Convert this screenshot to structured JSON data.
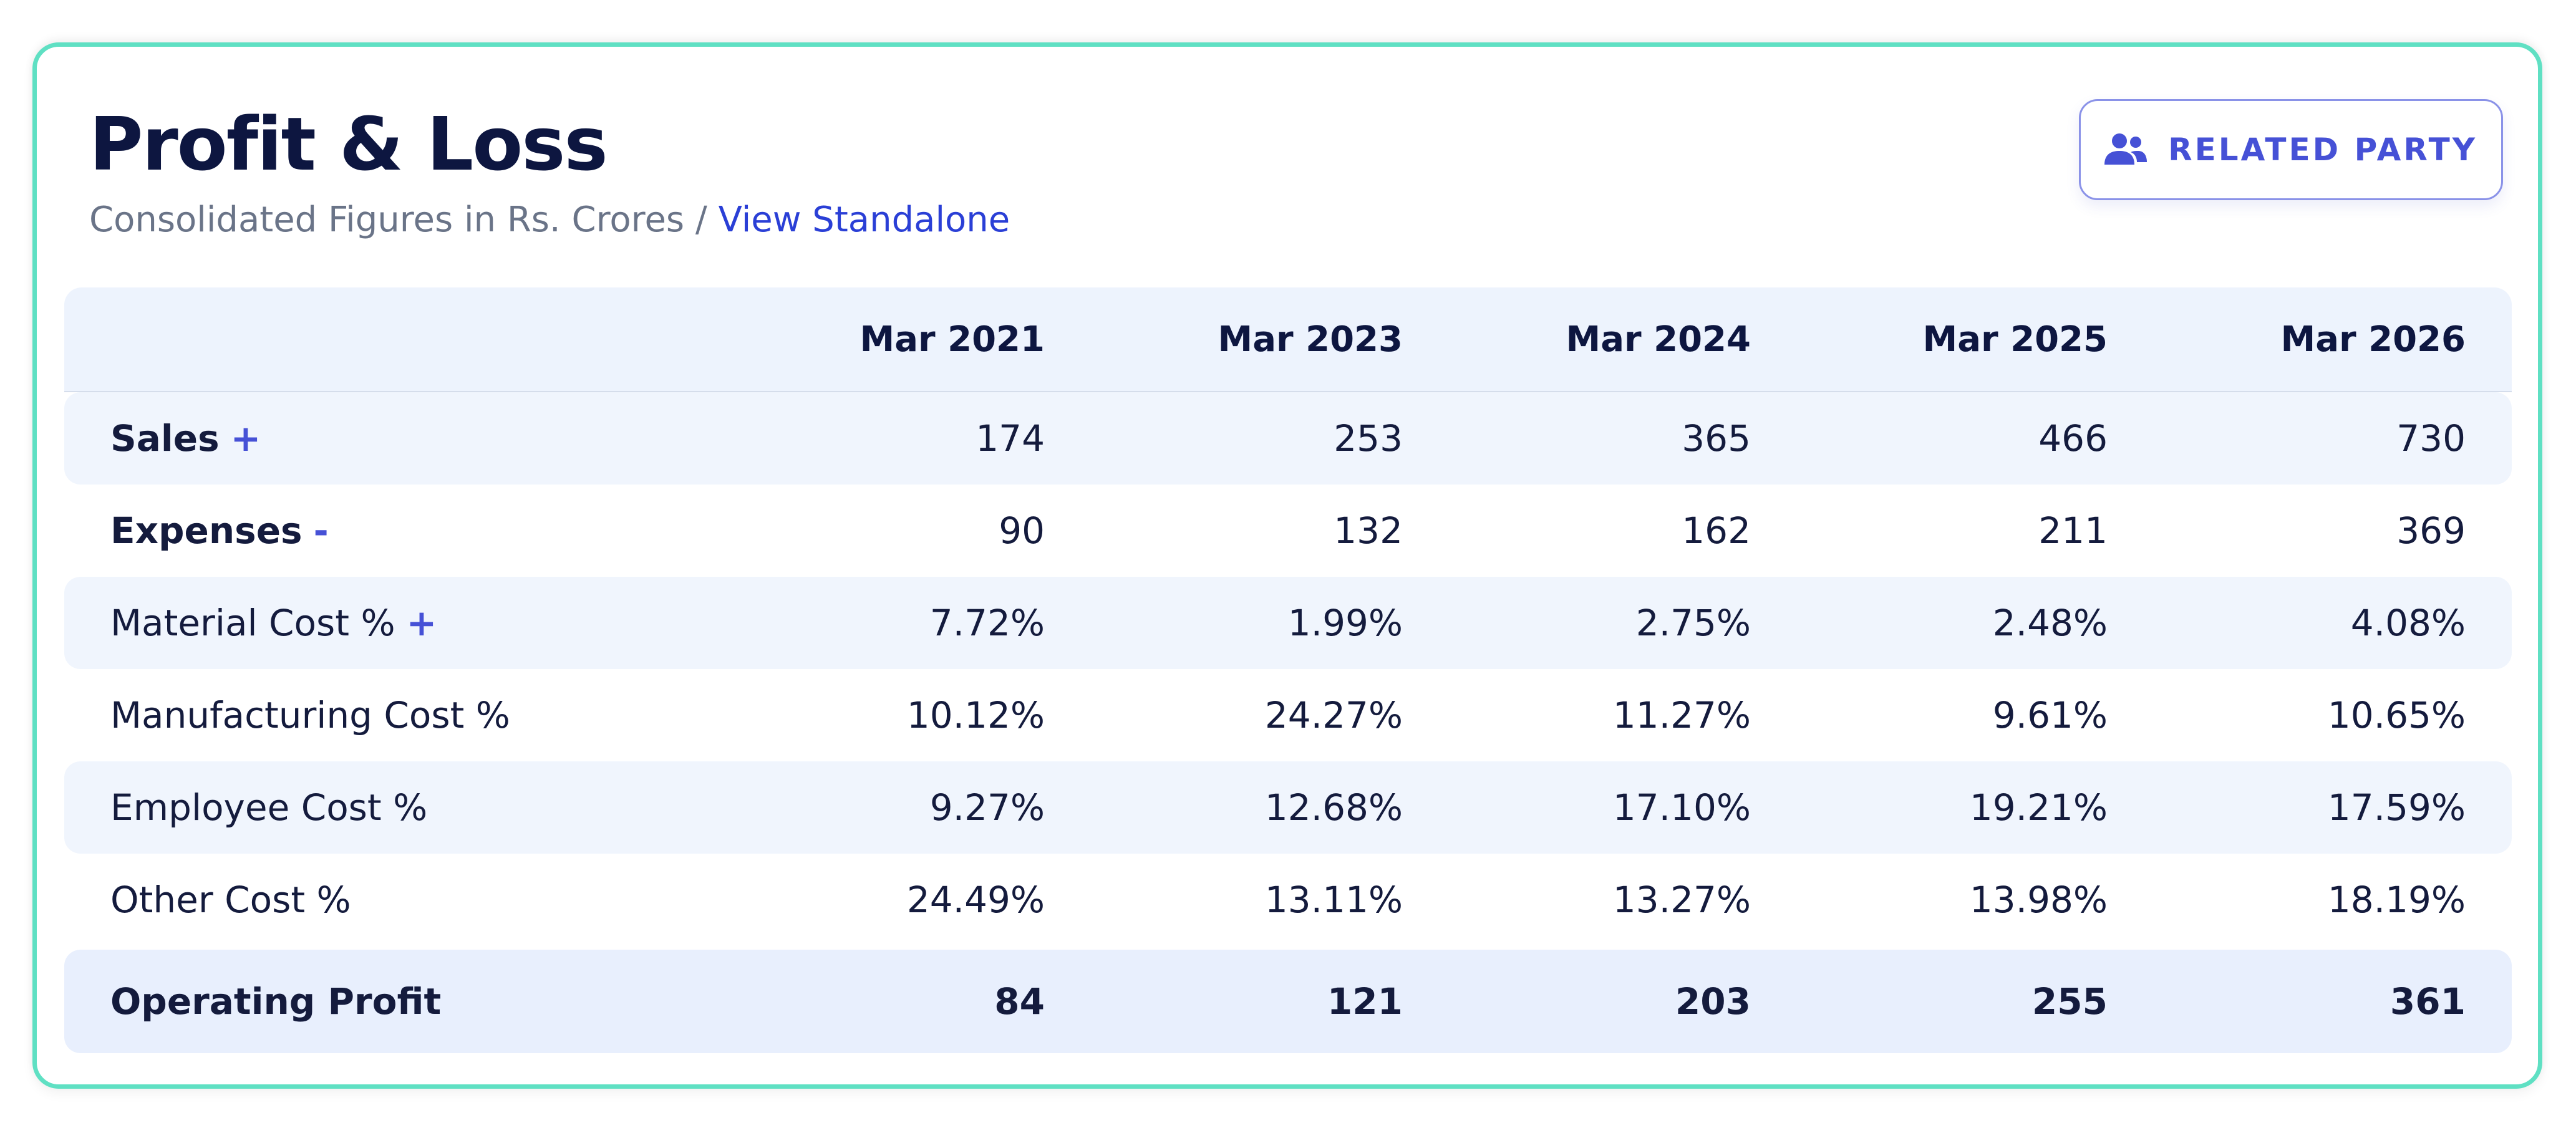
{
  "header": {
    "title": "Profit & Loss",
    "subtitle_text": "Consolidated Figures in Rs. Crores",
    "subtitle_separator": "/",
    "subtitle_link": "View Standalone"
  },
  "related_party_button": {
    "label": "RELATED PARTY",
    "icon": "users-icon"
  },
  "colors": {
    "card_border": "#5fe0c3",
    "accent": "#4651d6",
    "link": "#2a3fd6"
  },
  "table": {
    "columns": [
      "Mar 2021",
      "Mar 2023",
      "Mar 2024",
      "Mar 2025",
      "Mar 2026"
    ],
    "rows": [
      {
        "label": "Sales",
        "toggle": "+",
        "values": [
          "174",
          "253",
          "365",
          "466",
          "730"
        ]
      },
      {
        "label": "Expenses",
        "toggle": "-",
        "values": [
          "90",
          "132",
          "162",
          "211",
          "369"
        ]
      },
      {
        "label": "Material Cost %",
        "toggle": "+",
        "values": [
          "7.72%",
          "1.99%",
          "2.75%",
          "2.48%",
          "4.08%"
        ]
      },
      {
        "label": "Manufacturing Cost %",
        "values": [
          "10.12%",
          "24.27%",
          "11.27%",
          "9.61%",
          "10.65%"
        ]
      },
      {
        "label": "Employee Cost %",
        "values": [
          "9.27%",
          "12.68%",
          "17.10%",
          "19.21%",
          "17.59%"
        ]
      },
      {
        "label": "Other Cost %",
        "values": [
          "24.49%",
          "13.11%",
          "13.27%",
          "13.98%",
          "18.19%"
        ]
      },
      {
        "label": "Operating Profit",
        "values": [
          "84",
          "121",
          "203",
          "255",
          "361"
        ]
      }
    ]
  }
}
